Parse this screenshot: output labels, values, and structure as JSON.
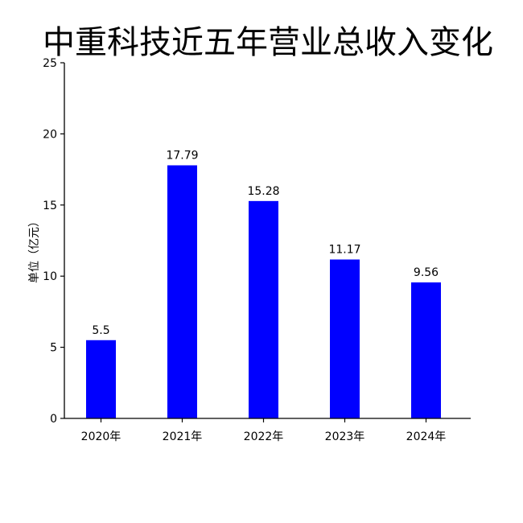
{
  "chart_data": {
    "type": "bar",
    "title": "中重科技近五年营业总收入变化",
    "xlabel": "",
    "ylabel": "单位（亿元）",
    "categories": [
      "2020年",
      "2021年",
      "2022年",
      "2023年",
      "2024年"
    ],
    "values": [
      5.5,
      17.79,
      15.28,
      11.17,
      9.56
    ],
    "value_labels": [
      "5.5",
      "17.79",
      "15.28",
      "11.17",
      "9.56"
    ],
    "ylim": [
      0,
      25
    ],
    "yticks": [
      0,
      5,
      10,
      15,
      20,
      25
    ],
    "bar_color": "#0000ff",
    "grid": false,
    "legend": "none"
  }
}
